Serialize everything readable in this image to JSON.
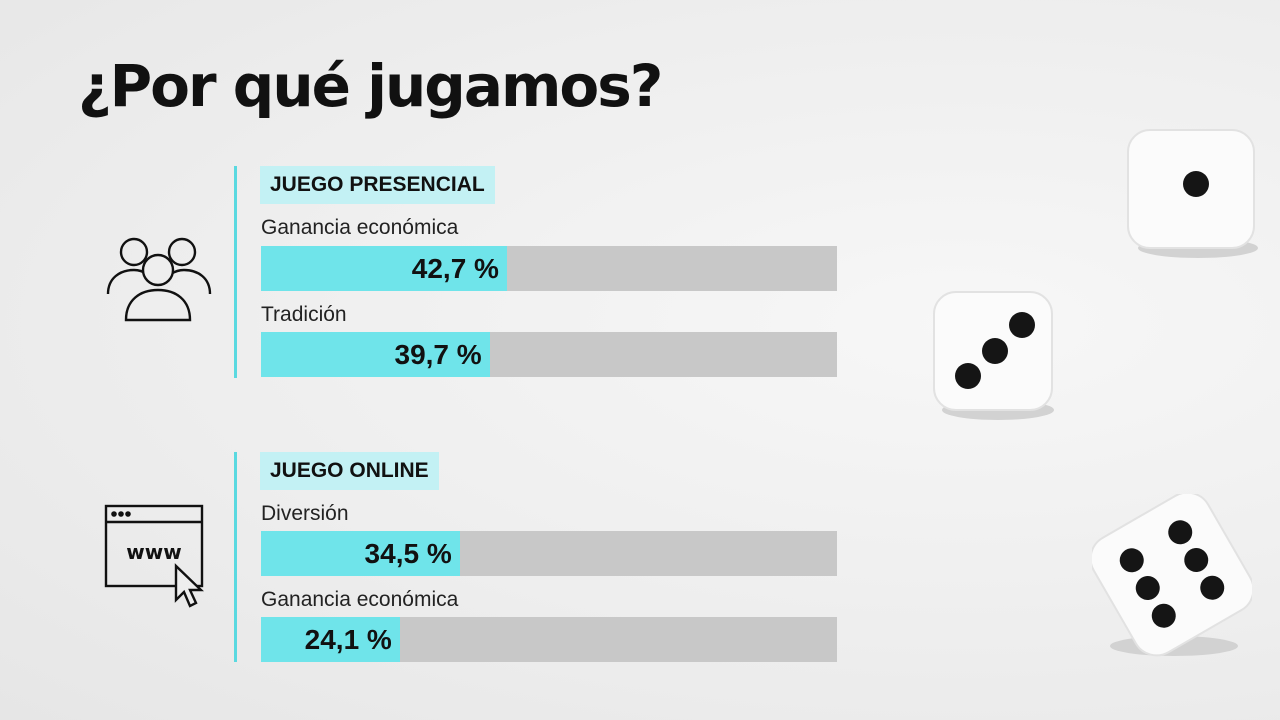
{
  "title": "¿Por qué jugamos?",
  "icons": {
    "group_1": "people-group-icon",
    "group_2": "browser-www-cursor-icon"
  },
  "colors": {
    "accent": "#6fe4ea",
    "badge_bg": "#c3f1f4",
    "track": "#c8c8c8"
  },
  "chart_data": {
    "type": "bar",
    "orientation": "horizontal",
    "groups": [
      {
        "name": "JUEGO PRESENCIAL",
        "bars": [
          {
            "label": "Ganancia económica",
            "value": 42.7,
            "display": "42,7 %"
          },
          {
            "label": "Tradición",
            "value": 39.7,
            "display": "39,7 %"
          }
        ]
      },
      {
        "name": "JUEGO ONLINE",
        "bars": [
          {
            "label": "Diversión",
            "value": 34.5,
            "display": "34,5 %"
          },
          {
            "label": "Ganancia económica",
            "value": 24.1,
            "display": "24,1 %"
          }
        ]
      }
    ],
    "xlim": [
      0,
      100
    ]
  }
}
